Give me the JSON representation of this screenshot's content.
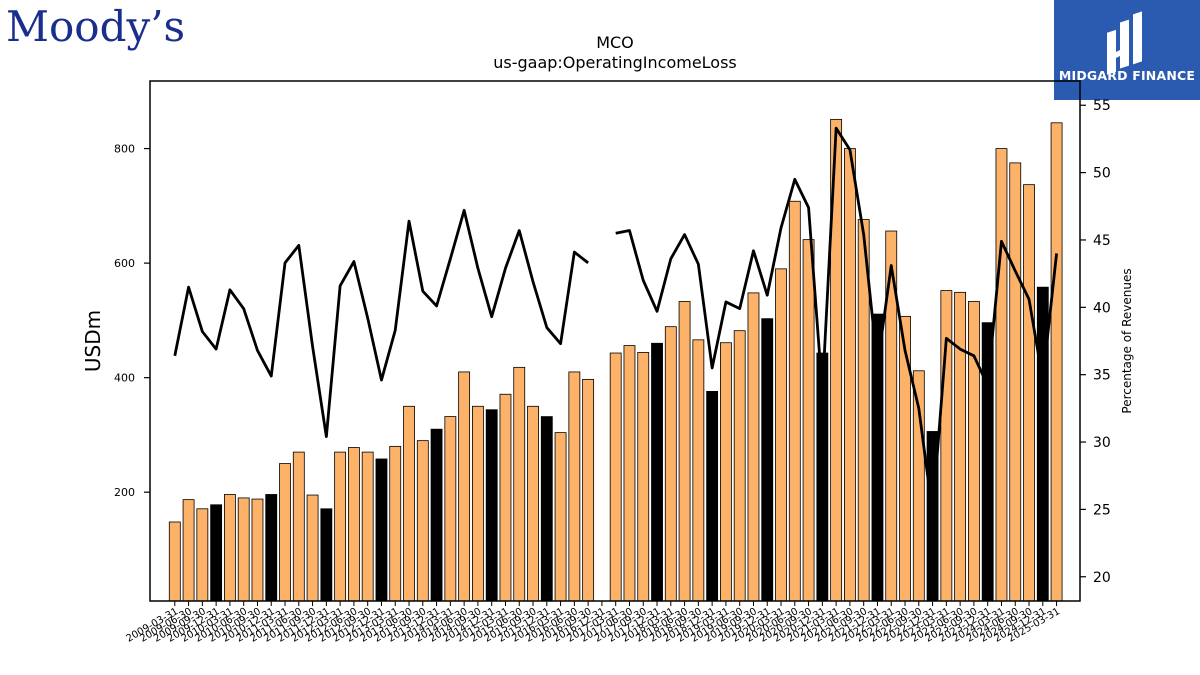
{
  "logos": {
    "left_text": "Moody’s",
    "right_text": "MIDGARD FINANCE",
    "right_bg": "#2b5bb0"
  },
  "chart_data": {
    "type": "bar",
    "title": "MCO",
    "subtitle": "us-gaap:OperatingIncomeLoss",
    "ylabel": "USDm",
    "y2label": "Percentage of Revenues",
    "ylim": [
      10,
      918
    ],
    "y2lim": [
      18.2,
      56.8
    ],
    "yticks": [
      200,
      400,
      600,
      800
    ],
    "y2ticks": [
      20,
      25,
      30,
      35,
      40,
      45,
      50,
      55
    ],
    "grid": false,
    "legend": "none",
    "colors": {
      "bar": "#fdb26a",
      "bar_q4": "#000000",
      "line": "#000000"
    },
    "categories": [
      "2009-03-31",
      "2009-06-30",
      "2009-09-30",
      "2009-12-31",
      "2010-03-31",
      "2010-06-30",
      "2010-09-30",
      "2010-12-31",
      "2011-03-31",
      "2011-06-30",
      "2011-09-30",
      "2011-12-31",
      "2012-03-31",
      "2012-06-30",
      "2012-09-30",
      "2012-12-31",
      "2013-03-31",
      "2013-06-30",
      "2013-09-30",
      "2013-12-31",
      "2014-03-31",
      "2014-06-30",
      "2014-09-30",
      "2014-12-31",
      "2015-03-31",
      "2015-06-30",
      "2015-09-30",
      "2015-12-31",
      "2016-03-31",
      "2016-06-30",
      "2016-09-30",
      "2016-12-31",
      "2017-03-31",
      "2017-06-30",
      "2017-09-30",
      "2017-12-31",
      "2018-03-31",
      "2018-06-30",
      "2018-09-30",
      "2018-12-31",
      "2019-03-31",
      "2019-06-30",
      "2019-09-30",
      "2019-12-31",
      "2020-03-31",
      "2020-06-30",
      "2020-09-30",
      "2020-12-31",
      "2021-03-31",
      "2021-06-30",
      "2021-09-30",
      "2021-12-31",
      "2022-03-31",
      "2022-06-30",
      "2022-09-30",
      "2022-12-31",
      "2023-03-31",
      "2023-06-30",
      "2023-09-30",
      "2023-12-31",
      "2024-03-31",
      "2024-06-30",
      "2024-09-30",
      "2024-12-31",
      "2025-03-31"
    ],
    "series": [
      {
        "kind": "bar",
        "values": [
          148,
          187,
          171,
          178,
          196,
          190,
          188,
          196,
          250,
          270,
          195,
          171,
          270,
          278,
          270,
          258,
          280,
          350,
          290,
          310,
          332,
          410,
          350,
          344,
          371,
          418,
          350,
          332,
          304,
          410,
          397,
          0,
          443,
          456,
          444,
          460,
          489,
          533,
          466,
          376,
          461,
          482,
          548,
          503,
          590,
          708,
          641,
          443,
          851,
          800,
          676,
          511,
          656,
          507,
          412,
          306,
          552,
          549,
          533,
          496,
          800,
          775,
          737,
          558,
          845
        ]
      },
      {
        "kind": "line",
        "axis": "right",
        "values": [
          36.4,
          41.5,
          38.2,
          36.9,
          41.3,
          39.9,
          36.8,
          34.9,
          43.3,
          44.6,
          37.1,
          30.4,
          41.6,
          43.4,
          39.2,
          34.6,
          38.3,
          46.4,
          41.2,
          40.1,
          43.6,
          47.2,
          42.9,
          39.3,
          42.9,
          45.7,
          41.9,
          38.5,
          37.3,
          44.1,
          43.3,
          0,
          45.5,
          45.7,
          42.0,
          39.7,
          43.6,
          45.4,
          43.2,
          35.5,
          40.4,
          39.9,
          44.2,
          40.9,
          45.9,
          49.5,
          47.4,
          33.7,
          53.3,
          51.7,
          45.4,
          35.7,
          43.1,
          36.8,
          32.5,
          24.7,
          37.7,
          36.9,
          36.4,
          34.2,
          44.9,
          42.7,
          40.6,
          34.6,
          44.0
        ]
      }
    ]
  }
}
